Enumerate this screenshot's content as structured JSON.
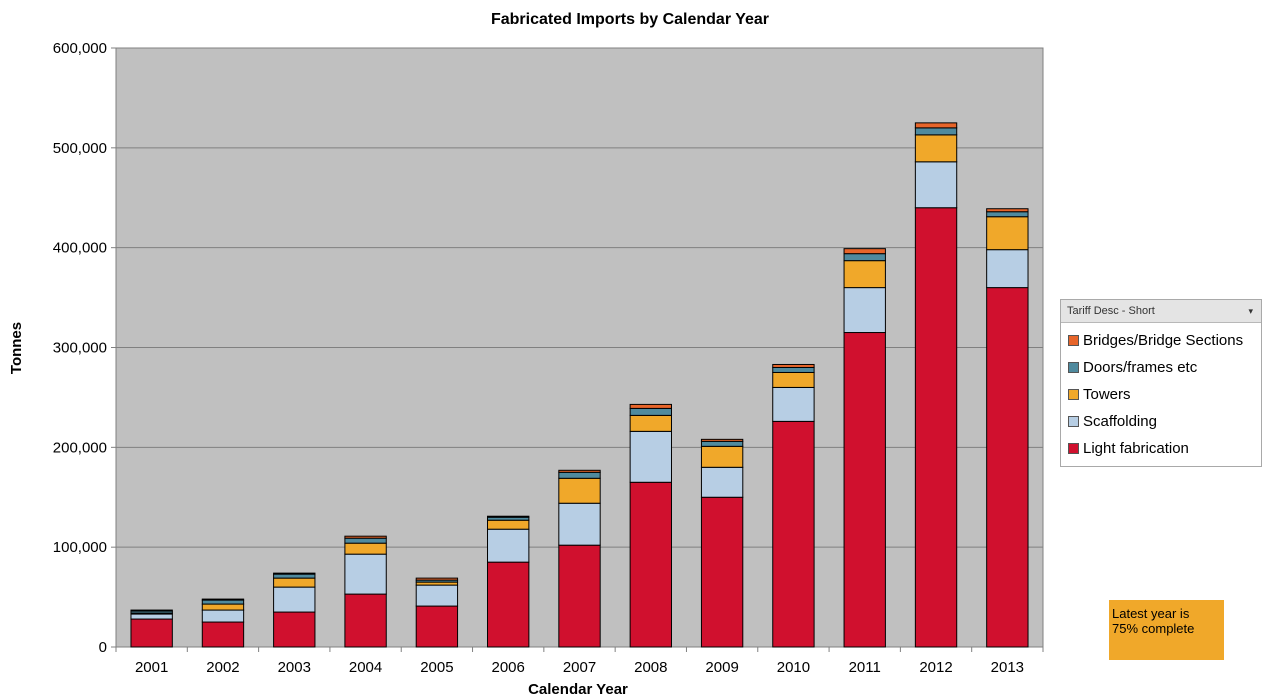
{
  "chart_data": {
    "type": "bar",
    "stacked": true,
    "title": "Fabricated Imports by Calendar Year",
    "xlabel": "Calendar Year",
    "ylabel": "Tonnes",
    "ylim": [
      0,
      600000
    ],
    "yticks": [
      0,
      100000,
      200000,
      300000,
      400000,
      500000,
      600000
    ],
    "ytick_labels": [
      "0",
      "100,000",
      "200,000",
      "300,000",
      "400,000",
      "500,000",
      "600,000"
    ],
    "grid": true,
    "plot_background": "#c0c0c0",
    "categories": [
      "2001",
      "2002",
      "2003",
      "2004",
      "2005",
      "2006",
      "2007",
      "2008",
      "2009",
      "2010",
      "2011",
      "2012",
      "2013"
    ],
    "series": [
      {
        "name": "Light fabrication",
        "color": "#d0102e",
        "values": [
          28000,
          25000,
          35000,
          53000,
          41000,
          85000,
          102000,
          165000,
          150000,
          226000,
          315000,
          440000,
          360000
        ]
      },
      {
        "name": "Scaffolding",
        "color": "#b7cee4",
        "values": [
          5000,
          12000,
          25000,
          40000,
          21000,
          33000,
          42000,
          51000,
          30000,
          34000,
          45000,
          46000,
          38000
        ]
      },
      {
        "name": "Towers",
        "color": "#f0a82a",
        "values": [
          1000,
          6000,
          9000,
          11000,
          3000,
          9000,
          25000,
          16000,
          21000,
          15000,
          27000,
          27000,
          33000
        ]
      },
      {
        "name": "Doors/frames etc",
        "color": "#4f8a9e",
        "values": [
          2000,
          4000,
          4000,
          5000,
          2000,
          3000,
          6000,
          7000,
          5000,
          5000,
          7000,
          7000,
          5000
        ]
      },
      {
        "name": "Bridges/Bridge Sections",
        "color": "#e7652a",
        "values": [
          1000,
          1000,
          1000,
          2000,
          2000,
          1000,
          2000,
          4000,
          2000,
          3000,
          5000,
          5000,
          3000
        ]
      }
    ],
    "legend_position": "right",
    "legend": {
      "header": "Tariff Desc - Short",
      "dropdown_glyph": "▾",
      "items": [
        {
          "label": "Bridges/Bridge Sections",
          "color": "#e7652a"
        },
        {
          "label": "Doors/frames etc",
          "color": "#4f8a9e"
        },
        {
          "label": "Towers",
          "color": "#f0a82a"
        },
        {
          "label": "Scaffolding",
          "color": "#b7cee4"
        },
        {
          "label": "Light fabrication",
          "color": "#d0102e"
        }
      ]
    },
    "annotation": "Latest year is 75% complete",
    "annotation_lines": [
      "Latest year is",
      "75% complete"
    ]
  }
}
